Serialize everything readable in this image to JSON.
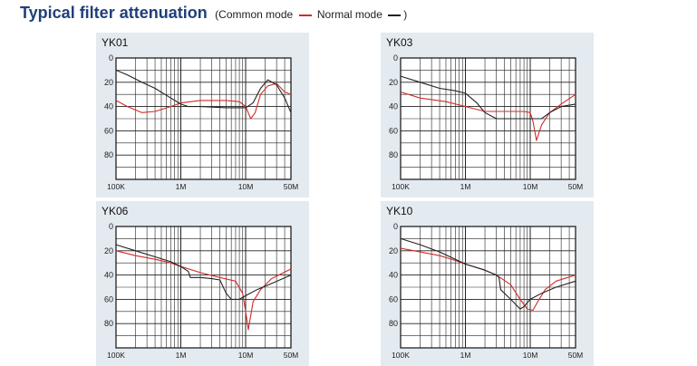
{
  "header": {
    "title": "Typical filter attenuation",
    "legend_prefix": "(Common mode",
    "legend_middle": "Normal mode",
    "legend_suffix": ")"
  },
  "colors": {
    "common_mode": "#d42a2a",
    "normal_mode": "#222222",
    "title": "#1f3f7a",
    "panel_background": "#e3eaf0"
  },
  "chart_data": [
    {
      "type": "line",
      "title": "YK01",
      "x_scale": "log",
      "xlim": [
        100000,
        50000000
      ],
      "ylim": [
        0,
        100
      ],
      "y_inverted": true,
      "x_ticks": [
        {
          "value": 100000,
          "label": "100K"
        },
        {
          "value": 1000000,
          "label": "1M"
        },
        {
          "value": 10000000,
          "label": "10M"
        },
        {
          "value": 50000000,
          "label": "50M"
        }
      ],
      "y_ticks": [
        {
          "value": 0,
          "label": "0"
        },
        {
          "value": 20,
          "label": "20"
        },
        {
          "value": 40,
          "label": "40"
        },
        {
          "value": 60,
          "label": "60"
        },
        {
          "value": 80,
          "label": "80"
        }
      ],
      "grid": true,
      "series": [
        {
          "role": "common_mode",
          "color": "#d42a2a",
          "x": [
            100000,
            150000,
            250000,
            400000,
            700000,
            1000000,
            2000000,
            5000000,
            8000000,
            10000000,
            12000000,
            14000000,
            17000000,
            22000000,
            30000000,
            40000000,
            50000000
          ],
          "y": [
            35,
            40,
            45,
            44,
            40,
            37,
            35,
            35,
            36,
            40,
            50,
            45,
            30,
            23,
            21,
            28,
            30
          ]
        },
        {
          "role": "normal_mode",
          "color": "#222222",
          "x": [
            100000,
            150000,
            250000,
            400000,
            700000,
            1000000,
            1300000,
            2000000,
            5000000,
            10000000,
            13000000,
            17000000,
            22000000,
            30000000,
            40000000,
            50000000
          ],
          "y": [
            10,
            14,
            20,
            25,
            33,
            38,
            40,
            40,
            41,
            41,
            37,
            25,
            18,
            22,
            33,
            45
          ]
        }
      ]
    },
    {
      "type": "line",
      "title": "YK03",
      "x_scale": "log",
      "xlim": [
        100000,
        50000000
      ],
      "ylim": [
        0,
        100
      ],
      "y_inverted": true,
      "x_ticks": [
        {
          "value": 100000,
          "label": "100K"
        },
        {
          "value": 1000000,
          "label": "1M"
        },
        {
          "value": 10000000,
          "label": "10M"
        },
        {
          "value": 50000000,
          "label": "50M"
        }
      ],
      "y_ticks": [
        {
          "value": 0,
          "label": "0"
        },
        {
          "value": 20,
          "label": "20"
        },
        {
          "value": 40,
          "label": "40"
        },
        {
          "value": 60,
          "label": "60"
        },
        {
          "value": 80,
          "label": "80"
        }
      ],
      "grid": true,
      "series": [
        {
          "role": "common_mode",
          "color": "#d42a2a",
          "x": [
            100000,
            200000,
            500000,
            1000000,
            2000000,
            3000000,
            5000000,
            8000000,
            10000000,
            11000000,
            12500000,
            15000000,
            20000000,
            30000000,
            50000000
          ],
          "y": [
            28,
            33,
            36,
            40,
            44,
            44,
            44,
            44,
            45,
            52,
            68,
            55,
            45,
            38,
            30
          ]
        },
        {
          "role": "normal_mode",
          "color": "#222222",
          "x": [
            100000,
            200000,
            400000,
            700000,
            1000000,
            1500000,
            2000000,
            3000000,
            5000000,
            8000000,
            10000000,
            15000000,
            20000000,
            30000000,
            50000000
          ],
          "y": [
            15,
            20,
            25,
            27,
            29,
            37,
            45,
            50,
            50,
            50,
            50,
            50,
            45,
            40,
            38
          ]
        }
      ]
    },
    {
      "type": "line",
      "title": "YK06",
      "x_scale": "log",
      "xlim": [
        100000,
        50000000
      ],
      "ylim": [
        0,
        100
      ],
      "y_inverted": true,
      "x_ticks": [
        {
          "value": 100000,
          "label": "100K"
        },
        {
          "value": 1000000,
          "label": "1M"
        },
        {
          "value": 10000000,
          "label": "10M"
        },
        {
          "value": 50000000,
          "label": "50M"
        }
      ],
      "y_ticks": [
        {
          "value": 0,
          "label": "0"
        },
        {
          "value": 20,
          "label": "20"
        },
        {
          "value": 40,
          "label": "40"
        },
        {
          "value": 60,
          "label": "60"
        },
        {
          "value": 80,
          "label": "80"
        }
      ],
      "grid": true,
      "series": [
        {
          "role": "common_mode",
          "color": "#d42a2a",
          "x": [
            100000,
            200000,
            400000,
            700000,
            1000000,
            2000000,
            4000000,
            7000000,
            9000000,
            10000000,
            11000000,
            13000000,
            17000000,
            25000000,
            50000000
          ],
          "y": [
            20,
            24,
            27,
            30,
            33,
            38,
            42,
            45,
            55,
            70,
            85,
            62,
            52,
            43,
            35
          ]
        },
        {
          "role": "normal_mode",
          "color": "#222222",
          "x": [
            100000,
            200000,
            400000,
            700000,
            1000000,
            1300000,
            1400000,
            2000000,
            3000000,
            4000000,
            5000000,
            6000000,
            8000000,
            10000000,
            15000000,
            25000000,
            50000000
          ],
          "y": [
            15,
            20,
            25,
            29,
            33,
            37,
            42,
            42,
            43,
            44,
            55,
            60,
            60,
            57,
            52,
            47,
            40
          ]
        }
      ]
    },
    {
      "type": "line",
      "title": "YK10",
      "x_scale": "log",
      "xlim": [
        100000,
        50000000
      ],
      "ylim": [
        0,
        100
      ],
      "y_inverted": true,
      "x_ticks": [
        {
          "value": 100000,
          "label": "100K"
        },
        {
          "value": 1000000,
          "label": "1M"
        },
        {
          "value": 10000000,
          "label": "10M"
        },
        {
          "value": 50000000,
          "label": "50M"
        }
      ],
      "y_ticks": [
        {
          "value": 0,
          "label": "0"
        },
        {
          "value": 20,
          "label": "20"
        },
        {
          "value": 40,
          "label": "40"
        },
        {
          "value": 60,
          "label": "60"
        },
        {
          "value": 80,
          "label": "80"
        }
      ],
      "grid": true,
      "series": [
        {
          "role": "common_mode",
          "color": "#d42a2a",
          "x": [
            100000,
            200000,
            400000,
            700000,
            1000000,
            2000000,
            3000000,
            5000000,
            7000000,
            9000000,
            11000000,
            13000000,
            17000000,
            25000000,
            50000000
          ],
          "y": [
            18,
            21,
            24,
            28,
            31,
            36,
            40,
            48,
            60,
            68,
            69,
            62,
            52,
            45,
            40
          ]
        },
        {
          "role": "normal_mode",
          "color": "#222222",
          "x": [
            100000,
            200000,
            400000,
            700000,
            1000000,
            2000000,
            3000000,
            3300000,
            3500000,
            5000000,
            7000000,
            8000000,
            10000000,
            15000000,
            25000000,
            50000000
          ],
          "y": [
            10,
            15,
            21,
            27,
            31,
            36,
            40,
            42,
            52,
            60,
            68,
            66,
            60,
            55,
            50,
            45
          ]
        }
      ]
    }
  ]
}
